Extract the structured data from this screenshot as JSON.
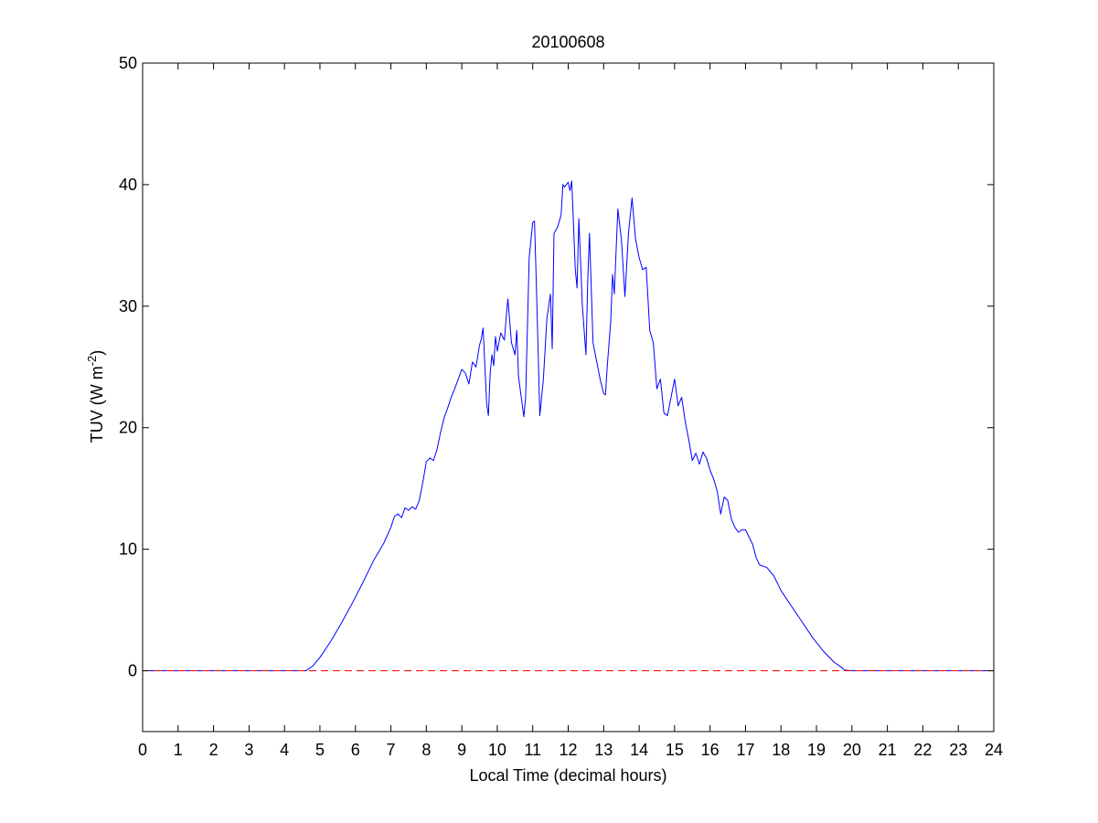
{
  "chart_data": {
    "type": "line",
    "title": "20100608",
    "xlabel": "Local Time (decimal hours)",
    "ylabel": {
      "main": "TUV (W m",
      "superscript": "-2",
      "suffix": ")"
    },
    "xlim": [
      0,
      24
    ],
    "ylim": [
      -5,
      50
    ],
    "xticks": [
      0,
      1,
      2,
      3,
      4,
      5,
      6,
      7,
      8,
      9,
      10,
      11,
      12,
      13,
      14,
      15,
      16,
      17,
      18,
      19,
      20,
      21,
      22,
      23,
      24
    ],
    "yticks": [
      0,
      10,
      20,
      30,
      40,
      50
    ],
    "grid": false,
    "colors": {
      "line": "#0000ff",
      "reference": "#ff0000",
      "axes": "#000000"
    },
    "series": [
      {
        "style": "solid",
        "color": "#0000ff",
        "x": [
          0,
          4.6,
          4.8,
          5.0,
          5.3,
          5.6,
          5.9,
          6.2,
          6.5,
          6.8,
          7.0,
          7.1,
          7.2,
          7.3,
          7.4,
          7.5,
          7.6,
          7.7,
          7.8,
          7.9,
          8.0,
          8.1,
          8.2,
          8.3,
          8.4,
          8.5,
          8.6,
          8.7,
          8.8,
          8.9,
          9.0,
          9.1,
          9.2,
          9.3,
          9.4,
          9.5,
          9.55,
          9.6,
          9.7,
          9.75,
          9.8,
          9.85,
          9.9,
          9.95,
          10.0,
          10.1,
          10.2,
          10.25,
          10.3,
          10.4,
          10.5,
          10.55,
          10.6,
          10.7,
          10.75,
          10.8,
          10.9,
          11.0,
          11.05,
          11.1,
          11.2,
          11.3,
          11.4,
          11.5,
          11.55,
          11.6,
          11.7,
          11.8,
          11.85,
          11.9,
          12.0,
          12.05,
          12.1,
          12.2,
          12.25,
          12.3,
          12.4,
          12.5,
          12.55,
          12.6,
          12.7,
          12.8,
          12.9,
          13.0,
          13.05,
          13.1,
          13.2,
          13.25,
          13.3,
          13.4,
          13.5,
          13.6,
          13.7,
          13.8,
          13.9,
          14.0,
          14.1,
          14.2,
          14.3,
          14.4,
          14.5,
          14.6,
          14.7,
          14.8,
          14.9,
          15.0,
          15.1,
          15.2,
          15.3,
          15.4,
          15.5,
          15.6,
          15.7,
          15.8,
          15.9,
          16.0,
          16.1,
          16.2,
          16.3,
          16.4,
          16.5,
          16.6,
          16.7,
          16.8,
          16.9,
          17.0,
          17.1,
          17.2,
          17.3,
          17.4,
          17.6,
          17.8,
          18.0,
          18.3,
          18.6,
          18.9,
          19.2,
          19.5,
          19.7,
          19.8,
          20.0,
          24
        ],
        "y": [
          0,
          0,
          0.4,
          1.1,
          2.4,
          3.9,
          5.5,
          7.2,
          9.0,
          10.5,
          11.8,
          12.7,
          12.9,
          12.6,
          13.4,
          13.2,
          13.5,
          13.3,
          14.0,
          15.5,
          17.2,
          17.5,
          17.3,
          18.2,
          19.6,
          20.8,
          21.6,
          22.5,
          23.2,
          24.0,
          24.8,
          24.5,
          23.6,
          25.4,
          25.0,
          26.8,
          27.3,
          28.2,
          22.0,
          21.0,
          24.5,
          26.0,
          25.1,
          27.5,
          26.3,
          27.8,
          27.2,
          29.0,
          30.6,
          27.0,
          26.0,
          28.0,
          24.2,
          22.0,
          20.9,
          22.5,
          34.0,
          36.9,
          37.0,
          32.0,
          21.0,
          24.0,
          29.0,
          31.0,
          26.5,
          36.0,
          36.5,
          37.5,
          40.0,
          39.8,
          40.2,
          39.5,
          40.3,
          33.0,
          31.5,
          37.2,
          30.0,
          26.0,
          32.0,
          36.0,
          27.0,
          25.5,
          24.0,
          22.8,
          22.7,
          25.0,
          28.8,
          32.6,
          31.0,
          38.0,
          35.5,
          30.8,
          36.0,
          38.9,
          35.5,
          34.0,
          33.0,
          33.2,
          28.0,
          27.0,
          23.2,
          24.0,
          21.2,
          21.0,
          22.5,
          24.0,
          21.8,
          22.5,
          20.5,
          19.0,
          17.3,
          17.9,
          17.0,
          18.0,
          17.5,
          16.5,
          15.8,
          14.8,
          12.9,
          14.3,
          14.0,
          12.5,
          11.8,
          11.4,
          11.6,
          11.6,
          11.0,
          10.4,
          9.3,
          8.7,
          8.5,
          7.8,
          6.6,
          5.3,
          4.0,
          2.7,
          1.6,
          0.7,
          0.3,
          0.05,
          0,
          0
        ]
      },
      {
        "style": "dashed",
        "color": "#ff0000",
        "x": [
          0,
          24
        ],
        "y": [
          0,
          0
        ]
      }
    ]
  }
}
